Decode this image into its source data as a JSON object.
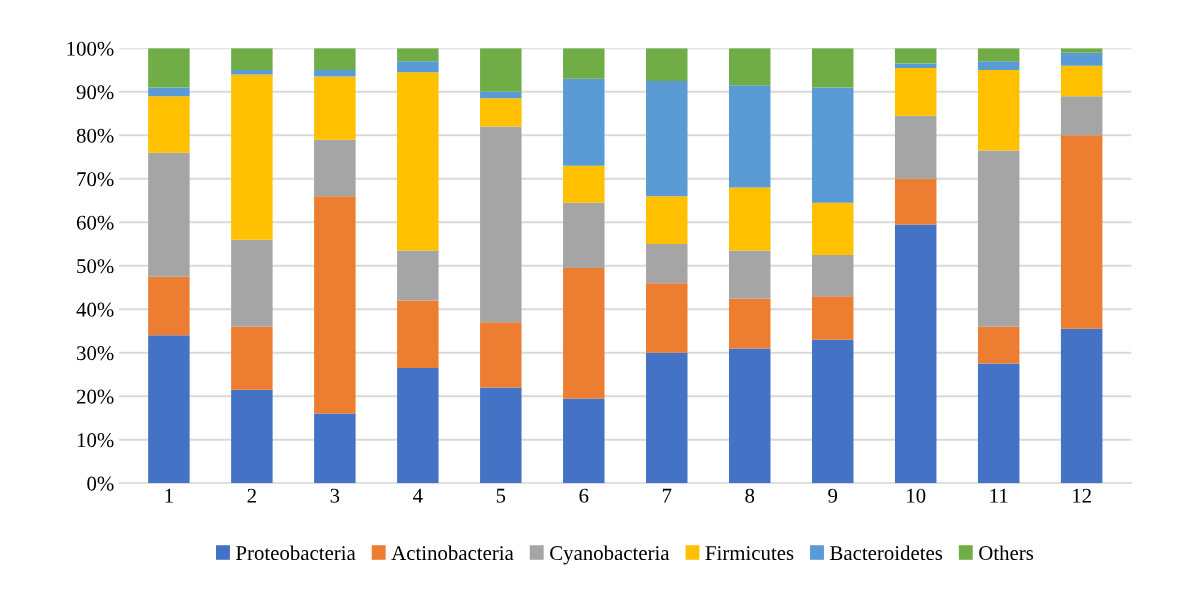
{
  "chart_data": {
    "type": "bar",
    "stacked": true,
    "categories": [
      "1",
      "2",
      "3",
      "4",
      "5",
      "6",
      "7",
      "8",
      "9",
      "10",
      "11",
      "12"
    ],
    "series": [
      {
        "name": "Proteobacteria",
        "color": "#4472c4",
        "values": [
          34,
          21.5,
          16,
          26.5,
          22,
          19.5,
          30,
          31,
          33,
          59.5,
          27.5,
          35.5
        ]
      },
      {
        "name": "Actinobacteria",
        "color": "#ed7d31",
        "values": [
          13.5,
          14.5,
          50,
          15.5,
          15,
          30,
          16,
          11.5,
          10,
          10.5,
          8.5,
          44.5
        ]
      },
      {
        "name": "Cyanobacteria",
        "color": "#a5a5a5",
        "values": [
          28.5,
          20,
          13,
          11.5,
          45,
          15,
          9,
          11,
          9.5,
          14.5,
          40.5,
          9
        ]
      },
      {
        "name": "Firmicutes",
        "color": "#ffc000",
        "values": [
          13,
          38,
          14.5,
          41,
          6.5,
          8.5,
          11,
          14.5,
          12,
          11,
          18.5,
          7
        ]
      },
      {
        "name": "Bacteroidetes",
        "color": "#5b9bd5",
        "values": [
          2,
          1,
          1.5,
          2.5,
          1.5,
          20,
          26.5,
          23.5,
          26.5,
          1,
          2,
          3
        ]
      },
      {
        "name": "Others",
        "color": "#70ad47",
        "values": [
          9,
          5,
          5,
          3,
          10,
          7,
          7.5,
          8.5,
          9,
          3.5,
          3,
          1
        ]
      }
    ],
    "ylim": [
      0,
      100
    ],
    "yticks": [
      {
        "value": 0,
        "label": "0%"
      },
      {
        "value": 10,
        "label": "10%"
      },
      {
        "value": 20,
        "label": "20%"
      },
      {
        "value": 30,
        "label": "30%"
      },
      {
        "value": 40,
        "label": "40%"
      },
      {
        "value": 50,
        "label": "50%"
      },
      {
        "value": 60,
        "label": "60%"
      },
      {
        "value": 70,
        "label": "70%"
      },
      {
        "value": 80,
        "label": "80%"
      },
      {
        "value": 90,
        "label": "90%"
      },
      {
        "value": 100,
        "label": "100%"
      }
    ],
    "grid": "y",
    "legend": "bottom"
  }
}
